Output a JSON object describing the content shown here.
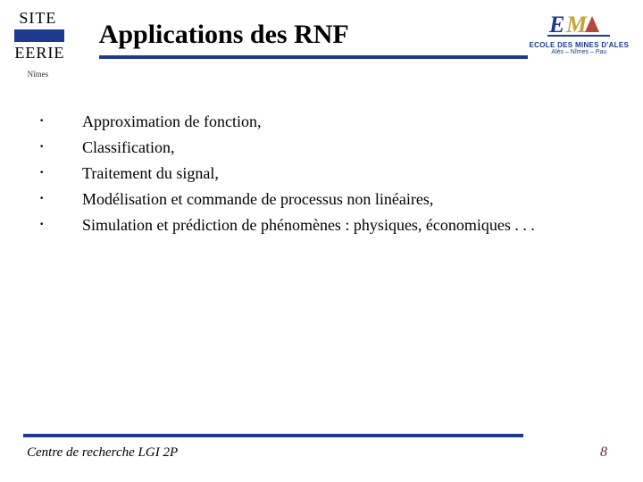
{
  "colors": {
    "accent_blue": "#1e3a8f",
    "page_number": "#7a1d1d",
    "background": "#ffffff",
    "text": "#000000"
  },
  "header": {
    "logo_left": {
      "line1": "SITE",
      "line2": "EERIE",
      "subtext": "Nîmes"
    },
    "title": "Applications des RNF",
    "logo_right": {
      "letters": "EMA",
      "school": "ECOLE DES MINES D'ALES",
      "cities": "Alès – Nîmes – Pau"
    }
  },
  "bullets": [
    "Approximation de fonction,",
    "Classification,",
    "Traitement du signal,",
    "Modélisation et commande de processus non linéaires,",
    "Simulation et prédiction de phénomènes : physiques, économiques . . ."
  ],
  "footer": {
    "center_label": "Centre de recherche  LGI 2P",
    "page_number": "8"
  }
}
